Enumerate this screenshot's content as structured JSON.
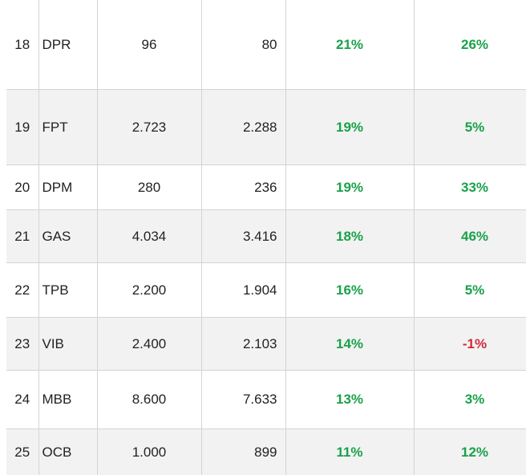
{
  "table": {
    "rows": [
      {
        "rank": "18",
        "code": "DPR",
        "v1": "96",
        "v2": "80",
        "p1": "21%",
        "p2": "26%",
        "p1_sign": "pos",
        "p2_sign": "pos"
      },
      {
        "rank": "19",
        "code": "FPT",
        "v1": "2.723",
        "v2": "2.288",
        "p1": "19%",
        "p2": "5%",
        "p1_sign": "pos",
        "p2_sign": "pos"
      },
      {
        "rank": "20",
        "code": "DPM",
        "v1": "280",
        "v2": "236",
        "p1": "19%",
        "p2": "33%",
        "p1_sign": "pos",
        "p2_sign": "pos"
      },
      {
        "rank": "21",
        "code": "GAS",
        "v1": "4.034",
        "v2": "3.416",
        "p1": "18%",
        "p2": "46%",
        "p1_sign": "pos",
        "p2_sign": "pos"
      },
      {
        "rank": "22",
        "code": "TPB",
        "v1": "2.200",
        "v2": "1.904",
        "p1": "16%",
        "p2": "5%",
        "p1_sign": "pos",
        "p2_sign": "pos"
      },
      {
        "rank": "23",
        "code": "VIB",
        "v1": "2.400",
        "v2": "2.103",
        "p1": "14%",
        "p2": "-1%",
        "p1_sign": "pos",
        "p2_sign": "neg"
      },
      {
        "rank": "24",
        "code": "MBB",
        "v1": "8.600",
        "v2": "7.633",
        "p1": "13%",
        "p2": "3%",
        "p1_sign": "pos",
        "p2_sign": "pos"
      },
      {
        "rank": "25",
        "code": "OCB",
        "v1": "1.000",
        "v2": "899",
        "p1": "11%",
        "p2": "12%",
        "p1_sign": "pos",
        "p2_sign": "pos"
      }
    ]
  },
  "colors": {
    "positive": "#1aa14a",
    "negative": "#d1283a",
    "alt_row_bg": "#f2f2f2",
    "border": "#d4d4d4"
  }
}
